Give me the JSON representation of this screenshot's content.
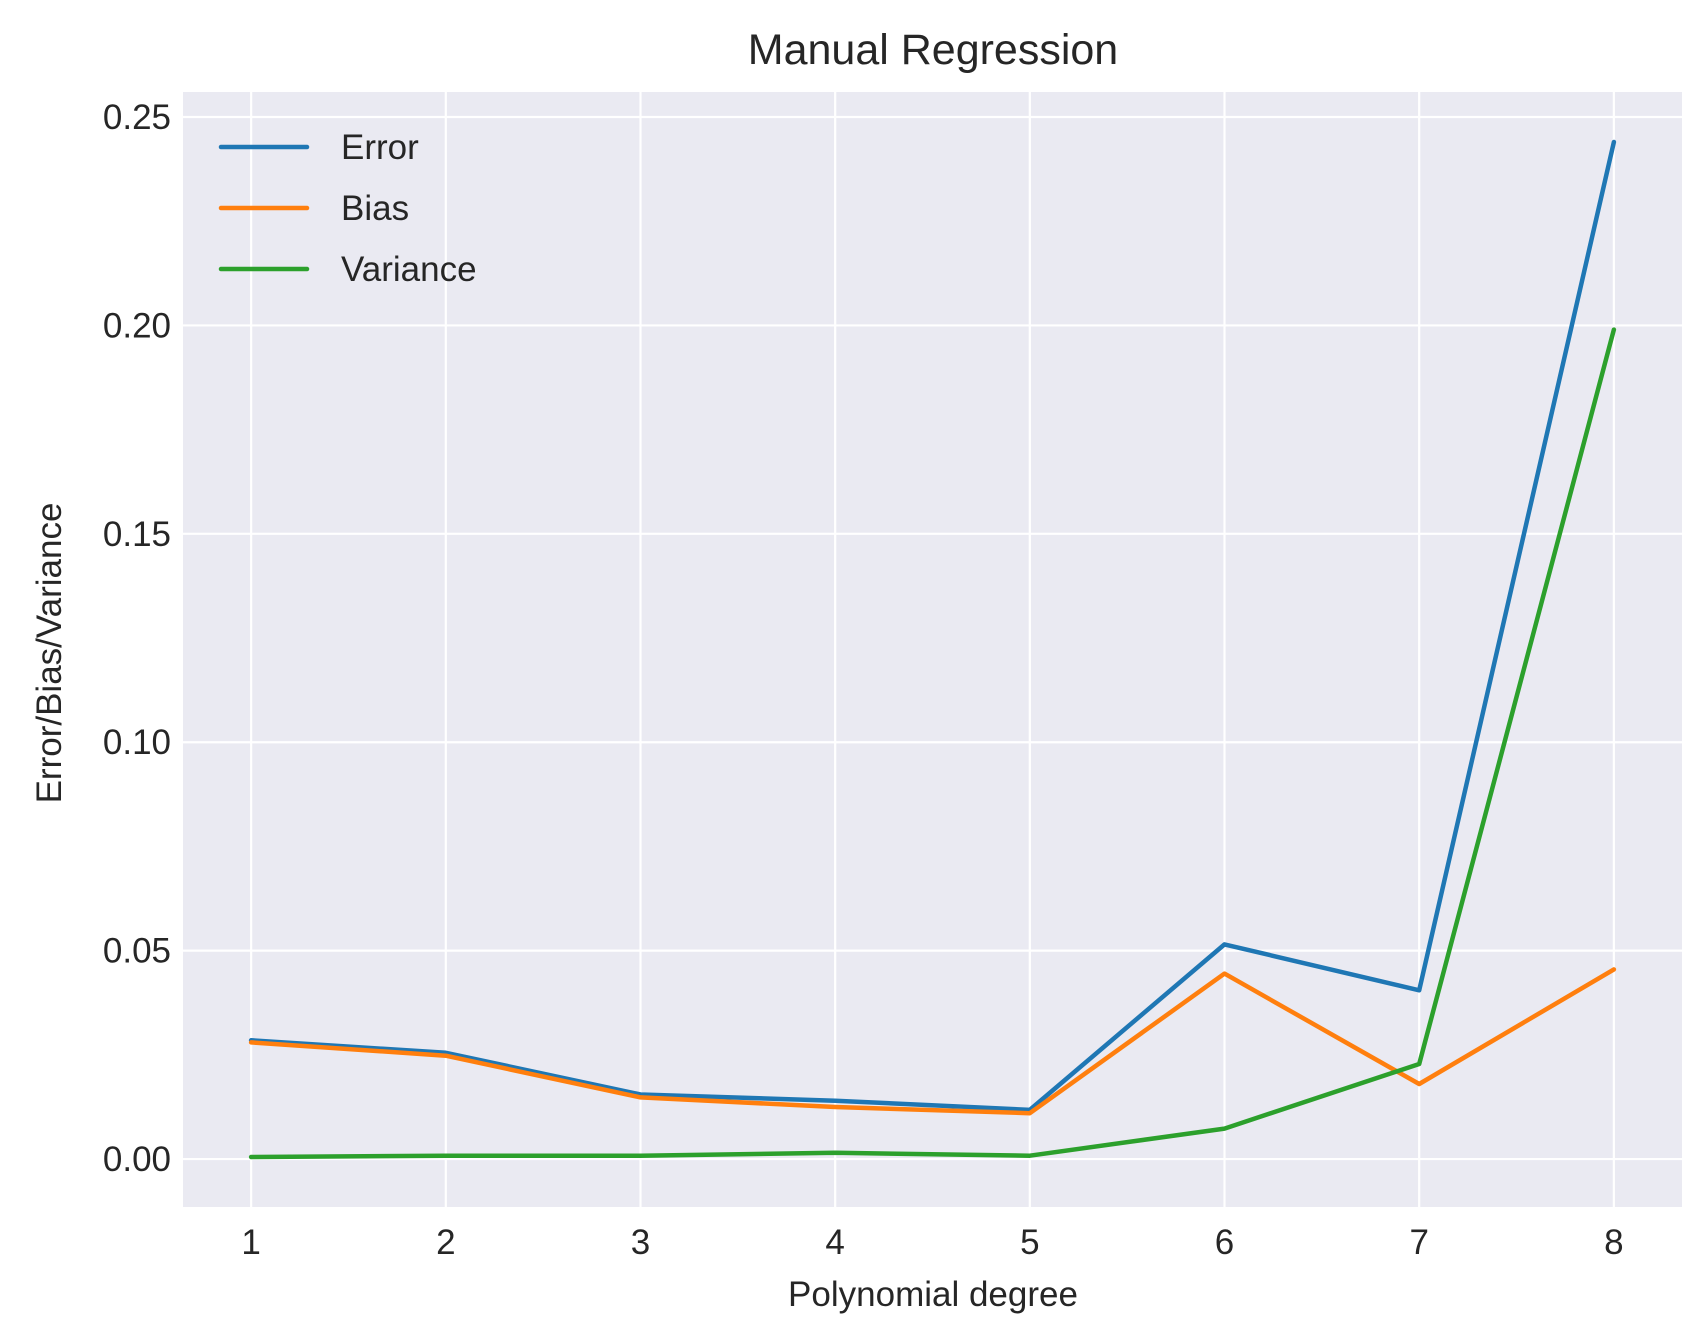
{
  "chart_data": {
    "type": "line",
    "title": "Manual Regression",
    "xlabel": "Polynomial degree",
    "ylabel": "Error/Bias/Variance",
    "x": [
      1,
      2,
      3,
      4,
      5,
      6,
      7,
      8
    ],
    "x_tick_labels": [
      "1",
      "2",
      "3",
      "4",
      "5",
      "6",
      "7",
      "8"
    ],
    "y_tick_values": [
      0.0,
      0.05,
      0.1,
      0.15,
      0.2,
      0.25
    ],
    "y_tick_labels": [
      "0.00",
      "0.05",
      "0.10",
      "0.15",
      "0.20",
      "0.25"
    ],
    "xlim": [
      0.65,
      8.35
    ],
    "ylim": [
      -0.0115,
      0.256
    ],
    "grid": true,
    "legend_position": "top-left",
    "background_color": "#eaeaf2",
    "grid_color": "#ffffff",
    "series": [
      {
        "name": "Error",
        "color": "#1f77b4",
        "values": [
          0.0285,
          0.0255,
          0.0155,
          0.014,
          0.0118,
          0.0515,
          0.0405,
          0.244
        ]
      },
      {
        "name": "Bias",
        "color": "#ff7f0e",
        "values": [
          0.028,
          0.0248,
          0.0148,
          0.0125,
          0.011,
          0.0445,
          0.018,
          0.0455
        ]
      },
      {
        "name": "Variance",
        "color": "#2ca02c",
        "values": [
          0.0005,
          0.0008,
          0.0008,
          0.0015,
          0.0008,
          0.0073,
          0.0228,
          0.199
        ]
      }
    ]
  }
}
